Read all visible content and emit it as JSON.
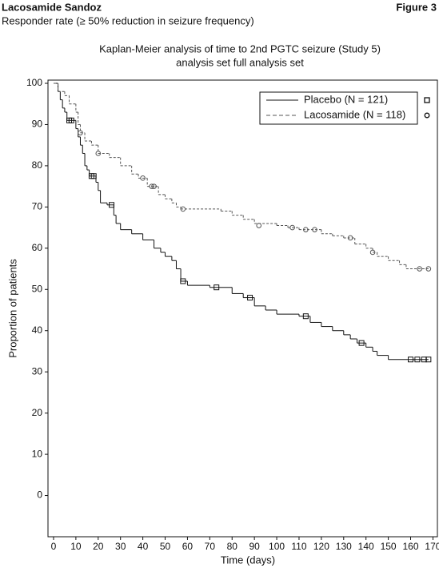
{
  "header": {
    "product": "Lacosamide Sandoz",
    "figure": "Figure 3",
    "subtitle": "Responder rate (≥ 50% reduction in seizure frequency)"
  },
  "chart_data": {
    "type": "step",
    "title": [
      "Kaplan-Meier analysis of time to 2nd PGTC seizure (Study 5)",
      "analysis set full analysis set"
    ],
    "x_label": "Time (days)",
    "y_label": "Proportion of patients",
    "xlim": [
      -2.5,
      172
    ],
    "ylim": [
      -10,
      100
    ],
    "xticks": [
      0,
      10,
      20,
      30,
      40,
      50,
      60,
      70,
      80,
      90,
      100,
      110,
      120,
      130,
      140,
      150,
      160,
      170
    ],
    "yticks": [
      0,
      10,
      20,
      30,
      40,
      50,
      60,
      70,
      80,
      90,
      100
    ],
    "legend": "upper right",
    "series": [
      {
        "name": "Placebo (N = 121)",
        "color": "#111111",
        "dash": "solid",
        "marker": "square",
        "x": [
          0,
          2,
          3,
          4,
          5,
          6,
          10,
          11,
          12,
          13,
          14,
          15,
          16,
          19,
          20,
          21,
          24,
          27,
          28,
          30,
          35,
          40,
          45,
          48,
          50,
          53,
          55,
          57,
          60,
          70,
          80,
          85,
          90,
          95,
          100,
          110,
          115,
          120,
          125,
          130,
          133,
          136,
          140,
          143,
          145,
          150,
          168
        ],
        "values": [
          100,
          98,
          96,
          94,
          93,
          91,
          89,
          87,
          85,
          83,
          80,
          79,
          77.5,
          76,
          74,
          71,
          70.5,
          68,
          66,
          64.5,
          63.5,
          62,
          60,
          59,
          58,
          57,
          55,
          52,
          51,
          50.5,
          49,
          48,
          46,
          45,
          44,
          43.5,
          42,
          41,
          40,
          39,
          38,
          37,
          36,
          35,
          34,
          33,
          33
        ],
        "censored": {
          "x": [
            7,
            8,
            17,
            18,
            26,
            58,
            73,
            88,
            113,
            138,
            160,
            163,
            166,
            168
          ],
          "values": [
            91,
            91,
            77.5,
            77.5,
            70.5,
            52,
            50.5,
            48,
            43.5,
            37,
            33,
            33,
            33,
            33
          ]
        }
      },
      {
        "name": "Lacosamide (N = 118)",
        "color": "#555555",
        "dash": "dashed",
        "marker": "circle",
        "x": [
          0,
          2,
          5,
          7,
          10,
          11,
          12,
          14,
          17,
          20,
          25,
          30,
          35,
          38,
          42,
          47,
          50,
          53,
          55,
          57,
          75,
          80,
          85,
          90,
          100,
          105,
          110,
          120,
          125,
          130,
          135,
          140,
          143,
          145,
          150,
          155,
          158,
          168
        ],
        "values": [
          100,
          98,
          97,
          95,
          93,
          90,
          88,
          86,
          85,
          83,
          82,
          80,
          78,
          77,
          75,
          73,
          72,
          71,
          70,
          69.5,
          69,
          68,
          67,
          66,
          65.5,
          65,
          64.5,
          63.5,
          63,
          62.5,
          61,
          60,
          59,
          58,
          57,
          56,
          55,
          55
        ],
        "censored": {
          "x": [
            12,
            20,
            40,
            44,
            45,
            58,
            92,
            107,
            113,
            117,
            133,
            143,
            164,
            168
          ],
          "values": [
            88,
            83,
            77,
            75,
            75,
            69.5,
            65.5,
            65,
            64.5,
            64.5,
            62.5,
            59,
            55,
            55
          ]
        }
      }
    ]
  }
}
